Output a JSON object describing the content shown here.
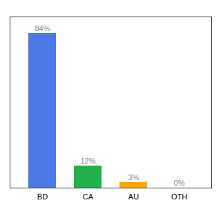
{
  "chart_data": {
    "type": "bar",
    "categories": [
      "BD",
      "CA",
      "AU",
      "OTH"
    ],
    "values": [
      84,
      12,
      3,
      0
    ],
    "value_labels": [
      "84%",
      "12%",
      "3%",
      "0%"
    ],
    "colors": [
      "#4d79e6",
      "#22b14c",
      "#ffa500",
      "#c8c8c8"
    ],
    "ylim": [
      0,
      93
    ],
    "data_labels": true,
    "tick_labels": "x",
    "grid": false
  }
}
